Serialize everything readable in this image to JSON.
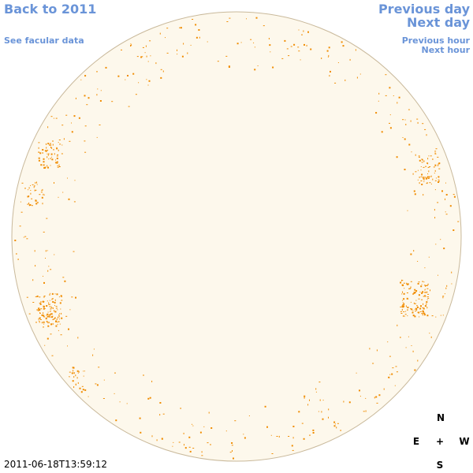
{
  "links": {
    "back": "Back to 2011",
    "facular_data": "See facular data",
    "previous_day": "Previous day",
    "next_day": "Next day",
    "previous_hour": "Previous hour",
    "next_hour": "Next hour"
  },
  "compass": {
    "north": "N",
    "east": "E",
    "center": "+",
    "west": "W",
    "south": "S"
  },
  "timestamp": "2011-06-18T13:59:12"
}
